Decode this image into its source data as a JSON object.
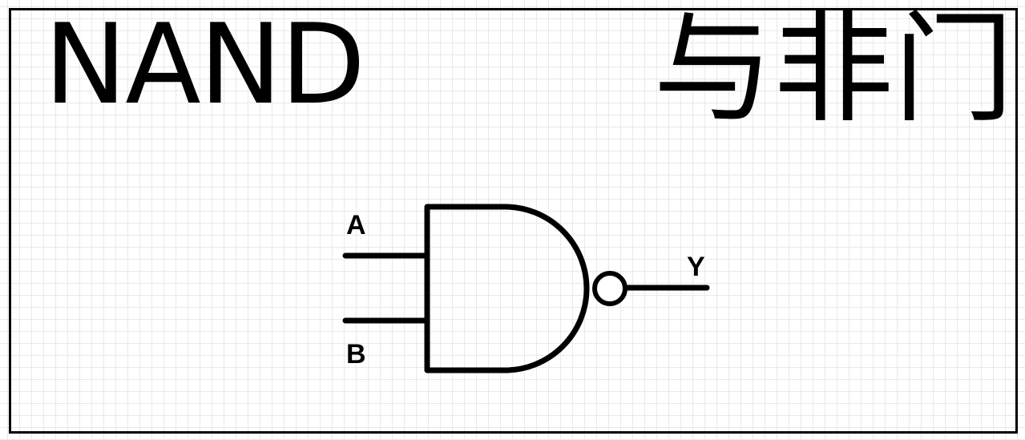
{
  "title": {
    "english": "NAND",
    "chinese": "与非门"
  },
  "gate": {
    "input_a_label": "A",
    "input_b_label": "B",
    "output_label": "Y"
  },
  "colors": {
    "stroke": "#000000",
    "background": "#ffffff",
    "grid": "#e9e9e9"
  }
}
